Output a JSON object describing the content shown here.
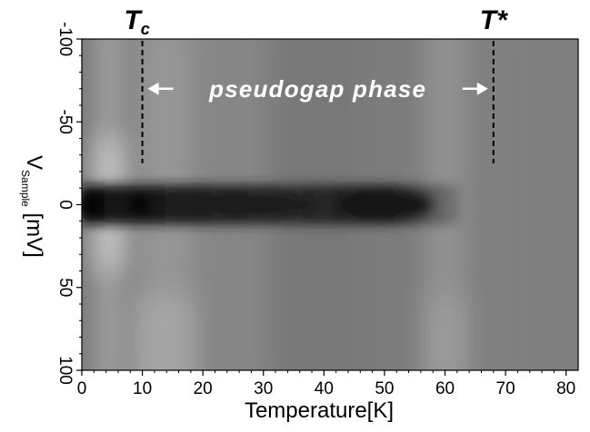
{
  "chart_data": {
    "type": "heatmap",
    "title": "",
    "xlabel": "Temperature[K]",
    "ylabel_main": "V",
    "ylabel_sub": "Sample",
    "ylabel_unit": "[mV]",
    "xlim": [
      0,
      82
    ],
    "ylim": [
      -100,
      100
    ],
    "y_inverted": true,
    "x_ticks": [
      0,
      10,
      20,
      30,
      40,
      50,
      60,
      70,
      80
    ],
    "x_tick_labels": [
      "0",
      "10",
      "20",
      "30",
      "40",
      "50",
      "60",
      "70",
      "80"
    ],
    "y_ticks": [
      -100,
      -50,
      0,
      50,
      100
    ],
    "y_tick_labels": [
      "-100",
      "-50",
      "0",
      "50",
      "100"
    ],
    "colormap": "grayscale",
    "background_color": "#7f7f7f",
    "annotations": {
      "tc_label": "T",
      "tc_sub": "c",
      "tc_x": 10,
      "tstar_label": "T*",
      "tstar_x": 68,
      "dashed_line_y_range": [
        -100,
        -25
      ],
      "phase_label": "pseudogap phase",
      "phase_arrow_from": 10,
      "phase_arrow_to": 68
    },
    "features": [
      {
        "feature": "zero-bias dark gap band",
        "voltage": 0,
        "temperature_range": [
          0,
          63
        ]
      },
      {
        "feature": "dark spot",
        "temperature": 1.5,
        "voltage": 0
      },
      {
        "feature": "dark spot",
        "temperature": 9.5,
        "voltage": 0
      },
      {
        "feature": "bright coherence band",
        "temperature": 4.5
      },
      {
        "feature": "bright band",
        "temperature": 14
      },
      {
        "feature": "bright band",
        "temperature": 60
      }
    ]
  }
}
